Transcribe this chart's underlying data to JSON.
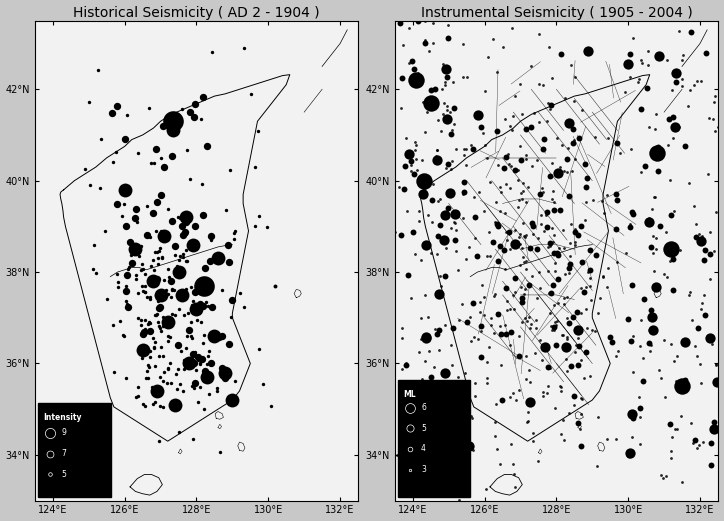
{
  "title_left": "Historical Seismicity ( AD 2 - 1904 )",
  "title_right": "Instrumental Seismicity ( 1905 - 2004 )",
  "lon_min": 123.5,
  "lon_max": 132.5,
  "lat_min": 33.0,
  "lat_max": 43.5,
  "xticks": [
    124,
    126,
    128,
    130,
    132
  ],
  "yticks": [
    34,
    36,
    38,
    40,
    42
  ],
  "map_bg": "#f0f0f0",
  "dot_color": "#000000",
  "legend_bg": "#000000",
  "legend_text_color": "#ffffff",
  "title_fontsize": 10,
  "tick_fontsize": 7,
  "legend_left_title": "Intensity",
  "legend_left_items": [
    {
      "label": "9",
      "size": 120
    },
    {
      "label": "7",
      "size": 55
    },
    {
      "label": "5",
      "size": 15
    }
  ],
  "legend_right_title": "ML",
  "legend_right_items": [
    {
      "label": "6",
      "size": 110
    },
    {
      "label": "5",
      "size": 60
    },
    {
      "label": "4",
      "size": 25
    },
    {
      "label": "3",
      "size": 7
    }
  ]
}
